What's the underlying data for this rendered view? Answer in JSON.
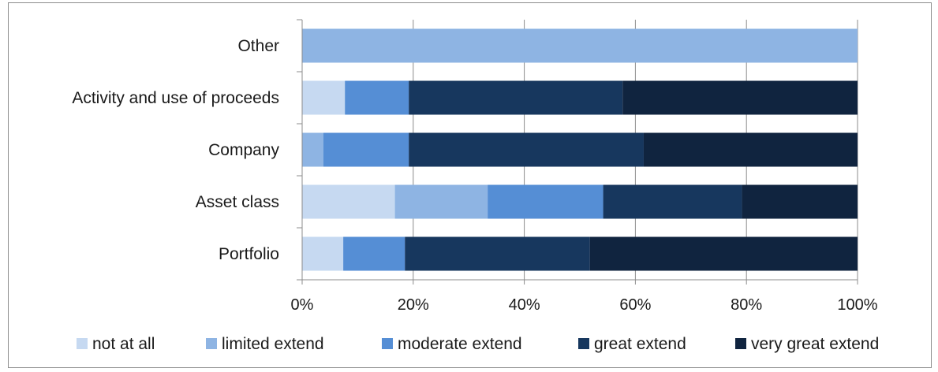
{
  "chart_data": {
    "type": "bar",
    "orientation": "horizontal",
    "stacked": "percent",
    "categories": [
      "Other",
      "Activity and use of proceeds",
      "Company",
      "Asset class",
      "Portfolio"
    ],
    "series": [
      {
        "name": "not at all",
        "color": "#c6d9f1",
        "values": [
          0,
          7.7,
          0,
          16.7,
          7.4
        ]
      },
      {
        "name": "limited extend",
        "color": "#8eb4e3",
        "values": [
          100,
          0,
          3.8,
          16.7,
          0
        ]
      },
      {
        "name": "moderate extend",
        "color": "#558ed5",
        "values": [
          0,
          11.5,
          15.4,
          20.8,
          11.1
        ]
      },
      {
        "name": "great extend",
        "color": "#17375e",
        "values": [
          0,
          38.5,
          42.3,
          25.0,
          33.3
        ]
      },
      {
        "name": "very great extend",
        "color": "#10243f",
        "values": [
          0,
          42.3,
          38.5,
          20.8,
          48.2
        ]
      }
    ],
    "xlim": [
      0,
      100
    ],
    "xticks": [
      "0%",
      "20%",
      "40%",
      "60%",
      "80%",
      "100%"
    ],
    "grid": "vertical",
    "legend": "bottom"
  }
}
